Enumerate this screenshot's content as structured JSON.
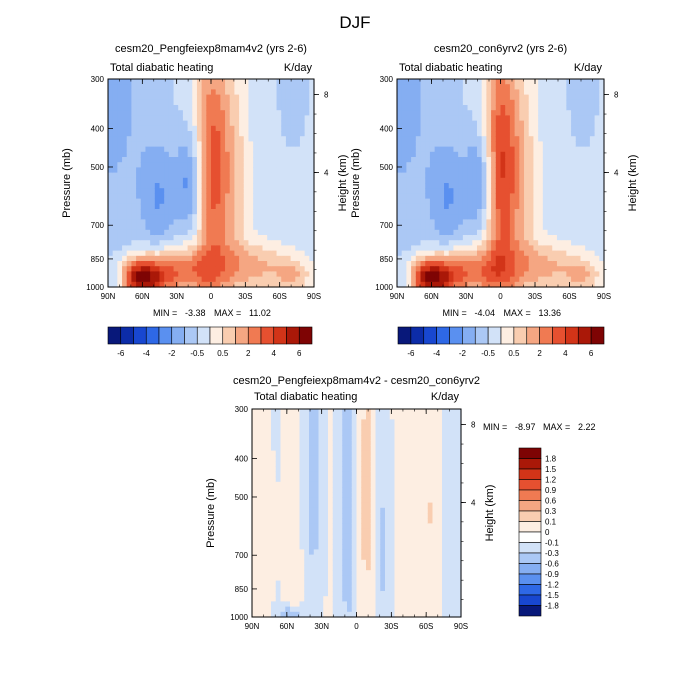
{
  "page": {
    "title": "DJF"
  },
  "colors": {
    "blue_scale": [
      "#08187a",
      "#0c2ca8",
      "#1847d0",
      "#2e68e6",
      "#5a90f0",
      "#85aef2",
      "#abc8f5",
      "#d2e2f8"
    ],
    "red_scale": [
      "#fdeee2",
      "#f9cdb0",
      "#f5a682",
      "#f07a52",
      "#e65030",
      "#d23418",
      "#aa1808",
      "#7e0404"
    ]
  },
  "chart_data": [
    {
      "type": "heatmap",
      "title": "cesm20_Pengfeiexp8mam4v2 (yrs 2-6)",
      "left_title": "Total diabatic heating",
      "units": "K/day",
      "ylabel": "Pressure (mb)",
      "y2label": "Height (km)",
      "x_ticks": [
        "90N",
        "60N",
        "30N",
        "0",
        "30S",
        "60S",
        "90S"
      ],
      "y_ticks": [
        "300",
        "400",
        "500",
        "700",
        "850",
        "1000"
      ],
      "y2_ticks": [
        "8",
        "4"
      ],
      "min_label": "MIN =",
      "min_value": "-3.38",
      "max_label": "MAX =",
      "max_value": "11.02",
      "colorbar_labels": [
        "-6",
        "-4",
        "-2",
        "-0.5",
        "0.5",
        "2",
        "4",
        "6"
      ]
    },
    {
      "type": "heatmap",
      "title": "cesm20_con6yrv2 (yrs 2-6)",
      "left_title": "Total diabatic heating",
      "units": "K/day",
      "ylabel": "Pressure (mb)",
      "y2label": "Height (km)",
      "x_ticks": [
        "90N",
        "60N",
        "30N",
        "0",
        "30S",
        "60S",
        "90S"
      ],
      "y_ticks": [
        "300",
        "400",
        "500",
        "700",
        "850",
        "1000"
      ],
      "y2_ticks": [
        "8",
        "4"
      ],
      "min_label": "MIN =",
      "min_value": "-4.04",
      "max_label": "MAX =",
      "max_value": "13.36",
      "colorbar_labels": [
        "-6",
        "-4",
        "-2",
        "-0.5",
        "0.5",
        "2",
        "4",
        "6"
      ]
    },
    {
      "type": "heatmap",
      "title": "cesm20_Pengfeiexp8mam4v2 - cesm20_con6yrv2",
      "left_title": "Total diabatic heating",
      "units": "K/day",
      "ylabel": "Pressure (mb)",
      "y2label": "Height (km)",
      "x_ticks": [
        "90N",
        "60N",
        "30N",
        "0",
        "30S",
        "60S",
        "90S"
      ],
      "y_ticks": [
        "300",
        "400",
        "500",
        "700",
        "850",
        "1000"
      ],
      "y2_ticks": [
        "8",
        "4"
      ],
      "min_label": "MIN =",
      "min_value": "-8.97",
      "max_label": "MAX =",
      "max_value": "2.22",
      "colorbar_labels": [
        "1.8",
        "1.5",
        "1.2",
        "0.9",
        "0.6",
        "0.3",
        "0.1",
        "0",
        "-0.1",
        "-0.3",
        "-0.6",
        "-0.9",
        "-1.2",
        "-1.5",
        "-1.8"
      ]
    }
  ]
}
